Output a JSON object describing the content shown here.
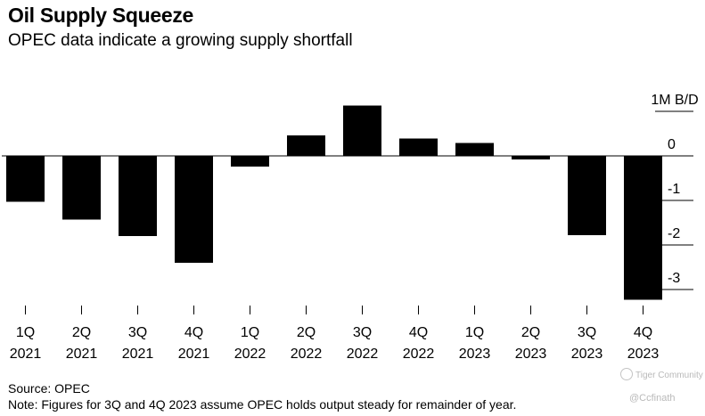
{
  "header": {
    "title": "Oil Supply Squeeze",
    "subtitle": "OPEC data indicate a growing supply shortfall"
  },
  "footer": {
    "source": "Source: OPEC",
    "note": "Note: Figures for 3Q and 4Q 2023 assume OPEC holds output steady for remainder of year."
  },
  "watermark": {
    "logo_text": "Tiger Community",
    "handle": "@Ccfinath"
  },
  "colors": {
    "bar": "#000000",
    "tick": "#000000",
    "text": "#000000",
    "watermark": "#b9b9b9"
  },
  "chart_data": {
    "type": "bar",
    "categories": [
      {
        "quarter": "1Q",
        "year": "2021"
      },
      {
        "quarter": "2Q",
        "year": "2021"
      },
      {
        "quarter": "3Q",
        "year": "2021"
      },
      {
        "quarter": "4Q",
        "year": "2021"
      },
      {
        "quarter": "1Q",
        "year": "2022"
      },
      {
        "quarter": "2Q",
        "year": "2022"
      },
      {
        "quarter": "3Q",
        "year": "2022"
      },
      {
        "quarter": "4Q",
        "year": "2022"
      },
      {
        "quarter": "1Q",
        "year": "2023"
      },
      {
        "quarter": "2Q",
        "year": "2023"
      },
      {
        "quarter": "3Q",
        "year": "2023"
      },
      {
        "quarter": "4Q",
        "year": "2023"
      }
    ],
    "values": [
      -1.03,
      -1.43,
      -1.8,
      -2.4,
      -0.24,
      0.46,
      1.13,
      0.39,
      0.29,
      -0.08,
      -1.78,
      -3.23
    ],
    "title": "Oil Supply Squeeze",
    "subtitle": "OPEC data indicate a growing supply shortfall",
    "ylabel": "",
    "yunit": "1M B/D",
    "ylim": [
      -3.4,
      1.25
    ],
    "yticks": [
      1,
      0,
      -1,
      -2,
      -3
    ],
    "ytick_labels": [
      "1M B/D",
      "0",
      "-1",
      "-2",
      "-3"
    ],
    "grid": false,
    "legend": "none"
  }
}
